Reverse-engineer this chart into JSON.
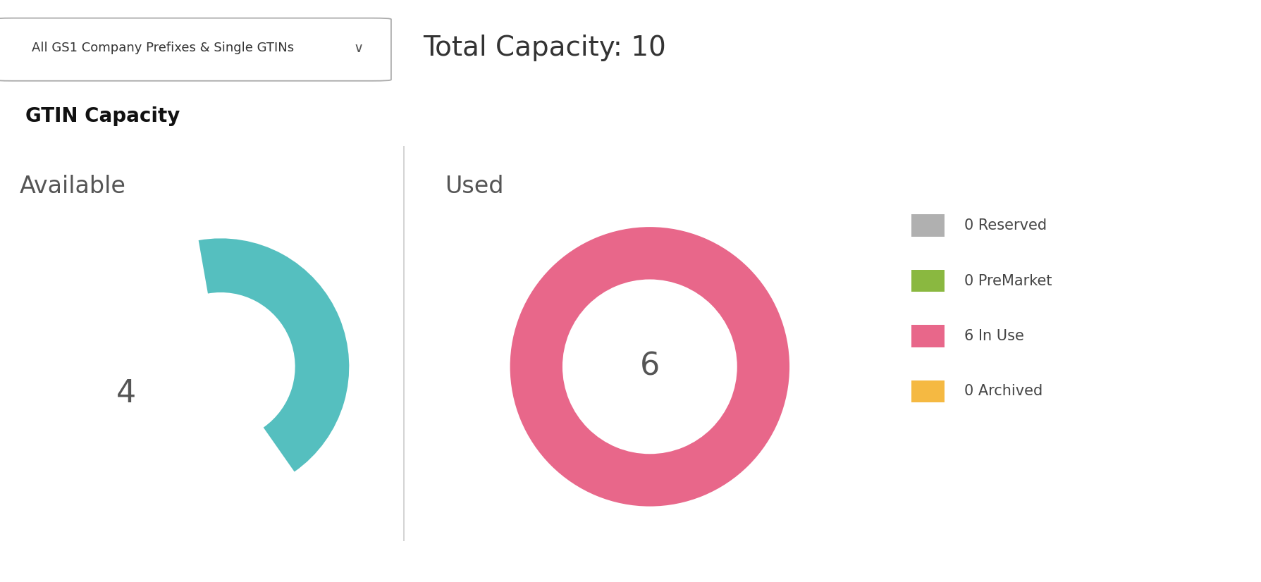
{
  "background_color": "#ffffff",
  "dropdown_text": "All GS1 Company Prefixes & Single GTINs",
  "total_capacity_text": "Total Capacity: 10",
  "section_title": "GTIN Capacity",
  "available_label": "Available",
  "used_label": "Used",
  "available_value": 4,
  "total_value": 10,
  "used_value": 6,
  "available_color": "#55bfbf",
  "used_color": "#e8678a",
  "legend_items": [
    {
      "label": "0 Reserved",
      "color": "#b0b0b0"
    },
    {
      "label": "0 PreMarket",
      "color": "#8ab840"
    },
    {
      "label": "6 In Use",
      "color": "#e8678a"
    },
    {
      "label": "0 Archived",
      "color": "#f5b942"
    }
  ],
  "divider_color": "#cccccc",
  "center_label_available": "4",
  "center_label_used": "6",
  "dropdown_fontsize": 13,
  "title_fontsize": 20,
  "sublabel_fontsize": 24,
  "value_fontsize": 32,
  "total_capacity_fontsize": 28,
  "legend_fontsize": 15,
  "avail_arc_theta1": -315,
  "avail_arc_theta2": 90,
  "arc_outer_r": 0.38,
  "arc_inner_r": 0.22
}
